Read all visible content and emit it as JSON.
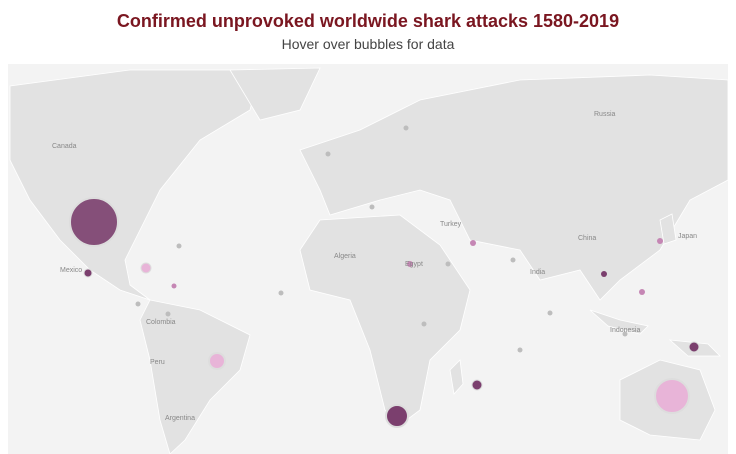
{
  "header": {
    "title": "Confirmed unprovoked worldwide shark attacks 1580-2019",
    "subtitle": "Hover over bubbles for data"
  },
  "map": {
    "labels": [
      "Russia",
      "Canada",
      "China",
      "Japan",
      "Turkey",
      "Algeria",
      "Egypt",
      "India",
      "Indonesia",
      "Mexico",
      "Colombia",
      "Peru",
      "Argentina"
    ]
  }
}
